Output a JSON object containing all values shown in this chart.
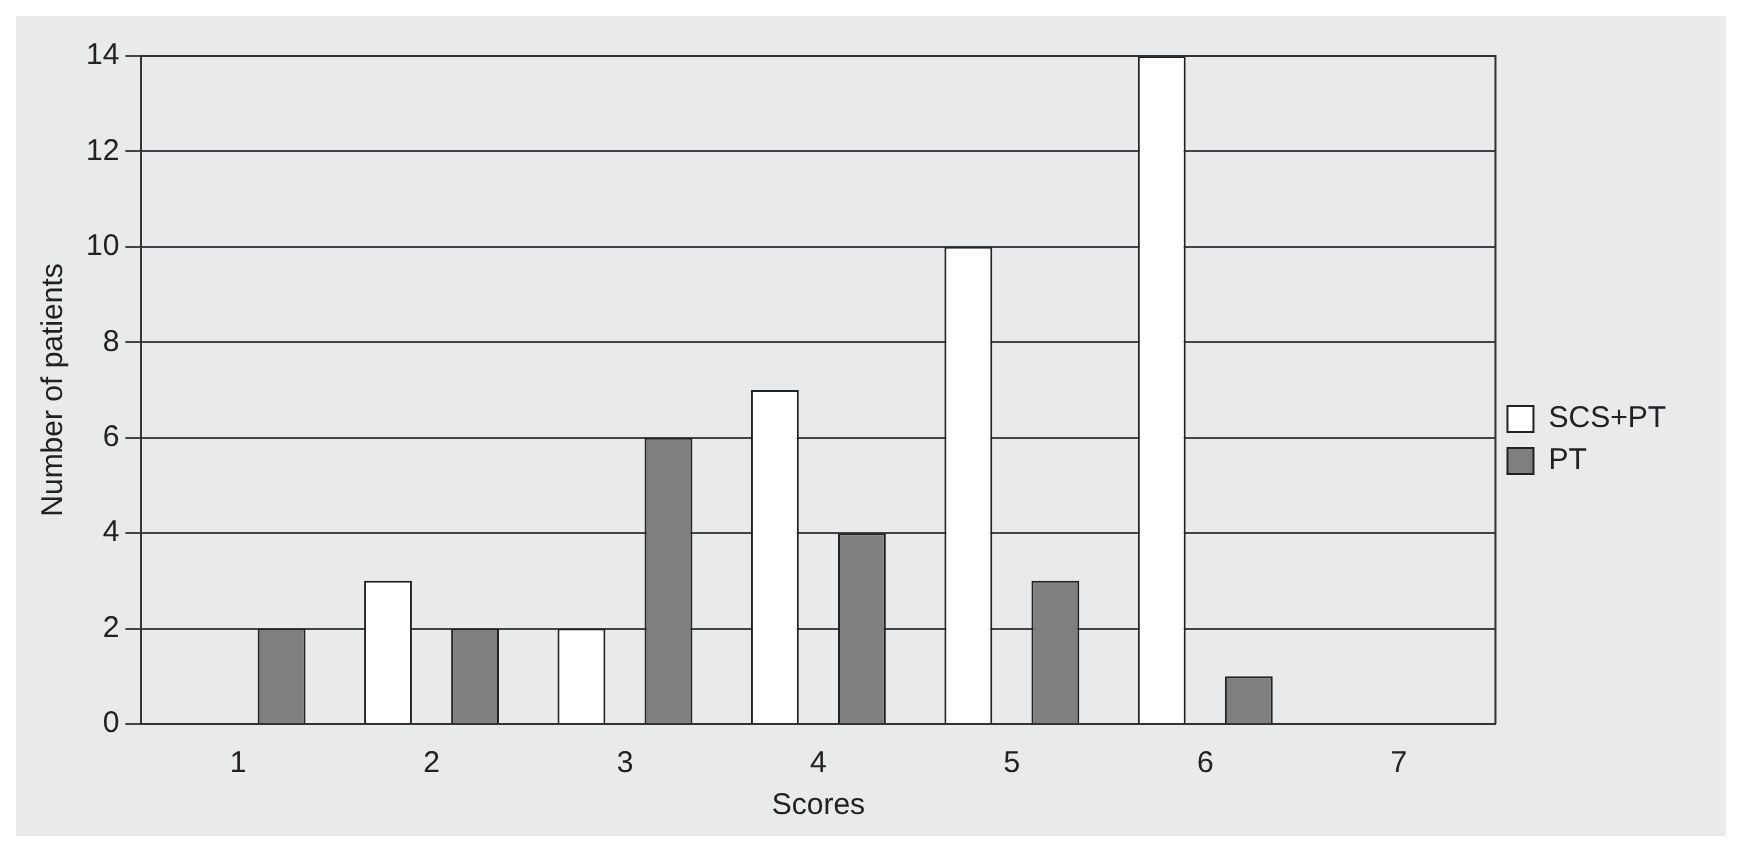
{
  "chart_data": {
    "type": "bar",
    "xlabel": "Scores",
    "ylabel": "Number of patients",
    "categories": [
      "1",
      "2",
      "3",
      "4",
      "5",
      "6",
      "7"
    ],
    "series": [
      {
        "name": "SCS+PT",
        "color": "#ffffff",
        "values": [
          0,
          3,
          2,
          7,
          10,
          14,
          0
        ]
      },
      {
        "name": "PT",
        "color": "#7f7f7f",
        "values": [
          2,
          2,
          6,
          4,
          3,
          1,
          0
        ]
      }
    ],
    "ylim": [
      0,
      14
    ],
    "yticks": [
      0,
      2,
      4,
      6,
      8,
      10,
      12,
      14
    ],
    "grid": "y",
    "legend": "right"
  }
}
